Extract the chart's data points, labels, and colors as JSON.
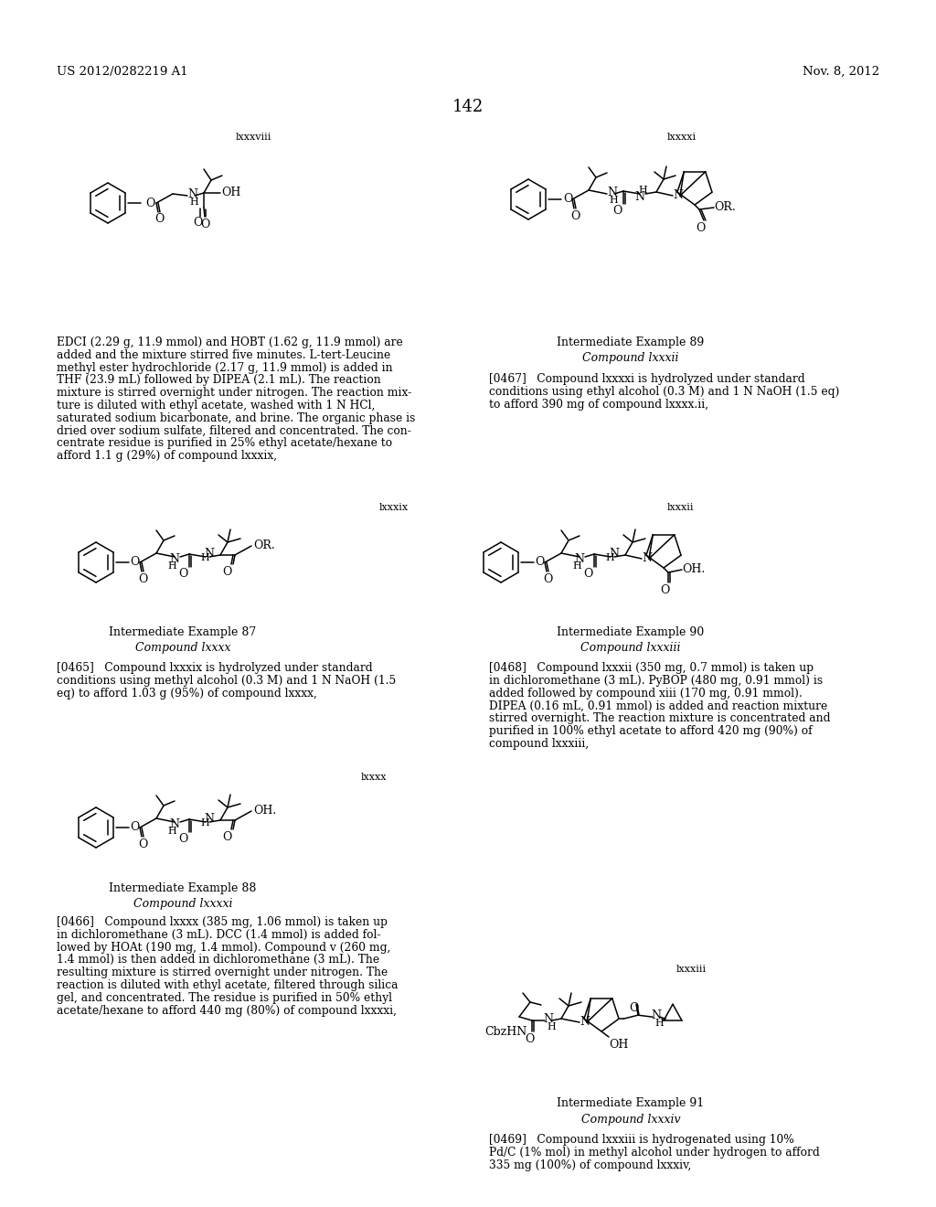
{
  "background_color": "#ffffff",
  "page_number": "142",
  "header_left": "US 2012/0282219 A1",
  "header_right": "Nov. 8, 2012",
  "label_lxxxviii": "lxxxviii",
  "label_lxxxxi": "lxxxxi",
  "label_lxxxix": "lxxxix",
  "label_lxxxii": "lxxxii",
  "label_lxxxx": "lxxxx",
  "label_lxxxiii": "lxxxiii",
  "ie87": "Intermediate Example 87",
  "ie88": "Intermediate Example 88",
  "ie89": "Intermediate Example 89",
  "ie90": "Intermediate Example 90",
  "ie91": "Intermediate Example 91",
  "cpd_lxxxii": "Compound lxxxii",
  "cpd_lxxxx": "Compound lxxxx",
  "cpd_lxxxiii": "Compound lxxxiii",
  "cpd_lxxxxi": "Compound lxxxxi",
  "cpd_lxxxiv": "Compound lxxxiv",
  "p_main": "EDCI (2.29 g, 11.9 mmol) and HOBT (1.62 g, 11.9 mmol) are added and the mixture stirred five minutes. L-tert-Leucine methyl ester hydrochloride (2.17 g, 11.9 mmol) is added in THF (23.9 mL) followed by DIPEA (2.1 mL). The reaction mixture is stirred overnight under nitrogen. The reaction mix-ture is diluted with ethyl acetate, washed with 1 N HCl, saturated sodium bicarbonate, and brine. The organic phase is dried over sodium sulfate, filtered and concentrated. The con-centrate residue is purified in 25% ethyl acetate/hexane to afford 1.1 g (29%) of compound lxxxix,",
  "p0467": "[0467]   Compound lxxxxi is hydrolyzed under standard conditions using ethyl alcohol (0.3 M) and 1 N NaOH (1.5 eq) to afford 390 mg of compound lxxxx.ii,",
  "p0465": "[0465]   Compound lxxxix is hydrolyzed under standard conditions using methyl alcohol (0.3 M) and 1 N NaOH (1.5 eq) to afford 1.03 g (95%) of compound lxxxx,",
  "p0466": "[0466]   Compound lxxxx (385 mg, 1.06 mmol) is taken up in dichloromethane (3 mL). DCC (1.4 mmol) is added fol-lowed by HOAt (190 mg, 1.4 mmol). Compound v (260 mg, 1.4 mmol) is then added in dichloromethane (3 mL). The resulting mixture is stirred overnight under nitrogen. The reaction is diluted with ethyl acetate, filtered through silica gel, and concentrated. The residue is purified in 50% ethyl acetate/hexane to afford 440 mg (80%) of compound lxxxxi,",
  "p0468": "[0468]   Compound lxxxii (350 mg, 0.7 mmol) is taken up in dichloromethane (3 mL). PyBOP (480 mg, 0.91 mmol) is added followed by compound xiii (170 mg, 0.91 mmol). DIPEA (0.16 mL, 0.91 mmol) is added and reaction mixture stirred overnight. The reaction mixture is concentrated and purified in 100% ethyl acetate to afford 420 mg (90%) of compound lxxxiii,",
  "p0469": "[0469]   Compound lxxxiii is hydrogenated using 10% Pd/C (1% mol) in methyl alcohol under hydrogen to afford 335 mg (100%) of compound lxxxiv,"
}
